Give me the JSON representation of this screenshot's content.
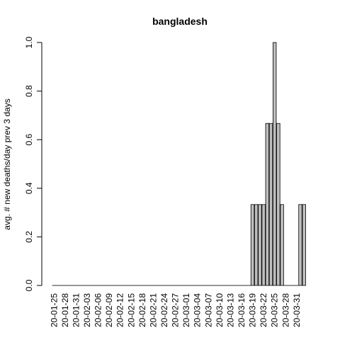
{
  "chart_data": {
    "type": "bar",
    "title": "bangladesh",
    "xlabel": "",
    "ylabel": "avg. # new deaths/day prev  3  days",
    "ylim": [
      0,
      1.0
    ],
    "yticks": [
      "0.0",
      "0.2",
      "0.4",
      "0.6",
      "0.8",
      "1.0"
    ],
    "grid": false,
    "colors": {
      "bar_fill": "#bebebe",
      "bar_stroke": "#000000"
    },
    "x_tick_labels": [
      "20-01-25",
      "20-01-28",
      "20-01-31",
      "20-02-03",
      "20-02-06",
      "20-02-09",
      "20-02-12",
      "20-02-15",
      "20-02-18",
      "20-02-21",
      "20-02-24",
      "20-02-27",
      "20-03-01",
      "20-03-04",
      "20-03-07",
      "20-03-10",
      "20-03-13",
      "20-03-16",
      "20-03-19",
      "20-03-22",
      "20-03-25",
      "20-03-28",
      "20-03-31"
    ],
    "categories": [
      "20-01-25",
      "20-01-26",
      "20-01-27",
      "20-01-28",
      "20-01-29",
      "20-01-30",
      "20-01-31",
      "20-02-01",
      "20-02-02",
      "20-02-03",
      "20-02-04",
      "20-02-05",
      "20-02-06",
      "20-02-07",
      "20-02-08",
      "20-02-09",
      "20-02-10",
      "20-02-11",
      "20-02-12",
      "20-02-13",
      "20-02-14",
      "20-02-15",
      "20-02-16",
      "20-02-17",
      "20-02-18",
      "20-02-19",
      "20-02-20",
      "20-02-21",
      "20-02-22",
      "20-02-23",
      "20-02-24",
      "20-02-25",
      "20-02-26",
      "20-02-27",
      "20-02-28",
      "20-02-29",
      "20-03-01",
      "20-03-02",
      "20-03-03",
      "20-03-04",
      "20-03-05",
      "20-03-06",
      "20-03-07",
      "20-03-08",
      "20-03-09",
      "20-03-10",
      "20-03-11",
      "20-03-12",
      "20-03-13",
      "20-03-14",
      "20-03-15",
      "20-03-16",
      "20-03-17",
      "20-03-18",
      "20-03-19",
      "20-03-20",
      "20-03-21",
      "20-03-22",
      "20-03-23",
      "20-03-24",
      "20-03-25",
      "20-03-26",
      "20-03-27",
      "20-03-28",
      "20-03-29",
      "20-03-30",
      "20-03-31",
      "20-04-01",
      "20-04-02"
    ],
    "values": [
      0,
      0,
      0,
      0,
      0,
      0,
      0,
      0,
      0,
      0,
      0,
      0,
      0,
      0,
      0,
      0,
      0,
      0,
      0,
      0,
      0,
      0,
      0,
      0,
      0,
      0,
      0,
      0,
      0,
      0,
      0,
      0,
      0,
      0,
      0,
      0,
      0,
      0,
      0,
      0,
      0,
      0,
      0,
      0,
      0,
      0,
      0,
      0,
      0,
      0,
      0,
      0,
      0,
      0,
      0.333,
      0.333,
      0.333,
      0.333,
      0.667,
      0.667,
      1.0,
      0.667,
      0.333,
      0,
      0,
      0,
      0,
      0.333,
      0.333
    ]
  }
}
